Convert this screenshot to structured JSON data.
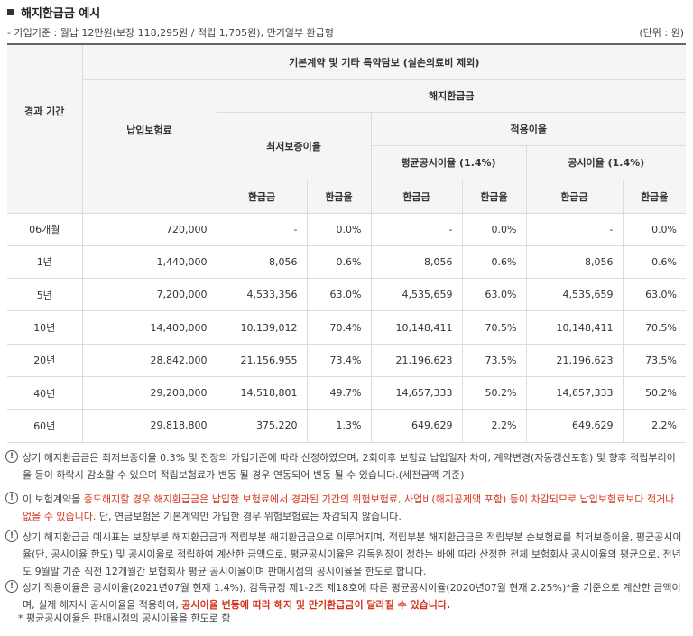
{
  "title": "해지환급금 예시",
  "basis": "- 가입기준 : 월납 12만원(보장 118,295원 / 적립 1,705원), 만기일부 환급형",
  "unit": "(단위 : 원)",
  "headers": {
    "period": "경과 기간",
    "premium": "납입보험료",
    "group": "기본계약 및 기타 특약담보 (실손의료비 제외)",
    "refund": "해지환급금",
    "min_rate": "최저보증이율",
    "applied_rate": "적용이율",
    "avg_rate": "평균공시이율 (1.4%)",
    "pub_rate": "공시이율 (1.4%)",
    "amount": "환급금",
    "ratio": "환급율"
  },
  "rows": [
    {
      "period": "06개월",
      "premium": "720,000",
      "min_amt": "-",
      "min_ratio": "0.0%",
      "avg_amt": "-",
      "avg_ratio": "0.0%",
      "pub_amt": "-",
      "pub_ratio": "0.0%"
    },
    {
      "period": "1년",
      "premium": "1,440,000",
      "min_amt": "8,056",
      "min_ratio": "0.6%",
      "avg_amt": "8,056",
      "avg_ratio": "0.6%",
      "pub_amt": "8,056",
      "pub_ratio": "0.6%"
    },
    {
      "period": "5년",
      "premium": "7,200,000",
      "min_amt": "4,533,356",
      "min_ratio": "63.0%",
      "avg_amt": "4,535,659",
      "avg_ratio": "63.0%",
      "pub_amt": "4,535,659",
      "pub_ratio": "63.0%"
    },
    {
      "period": "10년",
      "premium": "14,400,000",
      "min_amt": "10,139,012",
      "min_ratio": "70.4%",
      "avg_amt": "10,148,411",
      "avg_ratio": "70.5%",
      "pub_amt": "10,148,411",
      "pub_ratio": "70.5%"
    },
    {
      "period": "20년",
      "premium": "28,842,000",
      "min_amt": "21,156,955",
      "min_ratio": "73.4%",
      "avg_amt": "21,196,623",
      "avg_ratio": "73.5%",
      "pub_amt": "21,196,623",
      "pub_ratio": "73.5%"
    },
    {
      "period": "40년",
      "premium": "29,208,000",
      "min_amt": "14,518,801",
      "min_ratio": "49.7%",
      "avg_amt": "14,657,333",
      "avg_ratio": "50.2%",
      "pub_amt": "14,657,333",
      "pub_ratio": "50.2%"
    },
    {
      "period": "60년",
      "premium": "29,818,800",
      "min_amt": "375,220",
      "min_ratio": "1.3%",
      "avg_amt": "649,629",
      "avg_ratio": "2.2%",
      "pub_amt": "649,629",
      "pub_ratio": "2.2%"
    }
  ],
  "notes": {
    "n1": "상기 해지환급금은 최저보증이율 0.3% 및 전장의 가입기준에 따라 산정하였으며, 2회이후 보험료 납입일자 차이, 계약변경(자동갱신포함) 및 향후 적립부리이율 등이 하락시 감소할 수 있으며 적립보험료가 변동 될 경우 연동되어 변동 될 수 있습니다.(세전금액 기준)",
    "n2_a": "이 보험계약을 ",
    "n2_b": "중도해지할 경우 해지환급금은 납입한 보험료에서 경과된 기간의 위험보험료, 사업비(해지공제액 포함) 등이 차감되므로 납입보험료보다 적거나 없을 수 있습니다.",
    "n2_c": " 단, 연금보험은 기본계약만 가입한 경우 위험보험료는 차감되지 않습니다.",
    "n3": "상기 해지환급금 예시표는 보장부분 해지환급금과 적립부분 해지환급금으로 이루어지며, 적립부분 해지환급금은 적립부분 순보험료를 최저보증이율, 평균공시이율(단, 공시이율 한도) 및 공시이율로 적립하여 계산한 금액으로, 평균공시이율은 감독원장이 정하는 바에 따라 산정한 전체 보험회사 공시이율의 평균으로, 전년도 9월말 기준 직전 12개월간 보험회사 평균 공시이율이며 판매시점의 공시이율을 한도로 합니다.",
    "n4_a": "상기 적용이율은 공시이율(2021년07월 현재 1.4%), 감독규정 제1-2조 제18호에 따른 평균공시이율(2020년07월 현재 2.25%)*을 기준으로 계산한 금액이며, 실제 해지시 공시이율을 적용하여, ",
    "n4_b": "공시이율 변동에 따라 해지 및 만기환급금이 달라질 수 있습니다.",
    "star": "* 평균공시이율은 판매시점의 공시이율을 한도로 함"
  }
}
